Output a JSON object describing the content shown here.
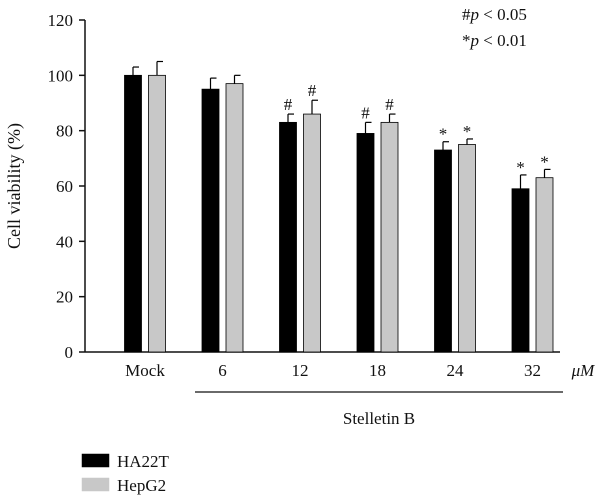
{
  "chart_data": {
    "type": "bar",
    "ylabel": "Cell viability (%)",
    "ylim": [
      0,
      120
    ],
    "yticks": [
      0,
      20,
      40,
      60,
      80,
      100,
      120
    ],
    "categories": [
      "Mock",
      "6",
      "12",
      "18",
      "24",
      "32"
    ],
    "unit_label": "μM",
    "group_label": "Stelletin B",
    "series": [
      {
        "name": "HA22T",
        "color": "#000000",
        "values": [
          100,
          95,
          83,
          79,
          73,
          59
        ],
        "errors": [
          3,
          4,
          3,
          4,
          3,
          5
        ],
        "marks": [
          "",
          "",
          "#",
          "#",
          "*",
          "*"
        ]
      },
      {
        "name": "HepG2",
        "color": "#c8c8c8",
        "values": [
          100,
          97,
          86,
          83,
          75,
          63
        ],
        "errors": [
          5,
          3,
          5,
          3,
          2,
          3
        ],
        "marks": [
          "",
          "",
          "#",
          "#",
          "*",
          "*"
        ]
      }
    ],
    "significance_notes": [
      {
        "symbol": "#",
        "p": "p",
        "rest": " < 0.05"
      },
      {
        "symbol": "*",
        "p": "p",
        "rest": " < 0.01"
      }
    ],
    "grid": false,
    "legend_position": "bottom-left"
  }
}
